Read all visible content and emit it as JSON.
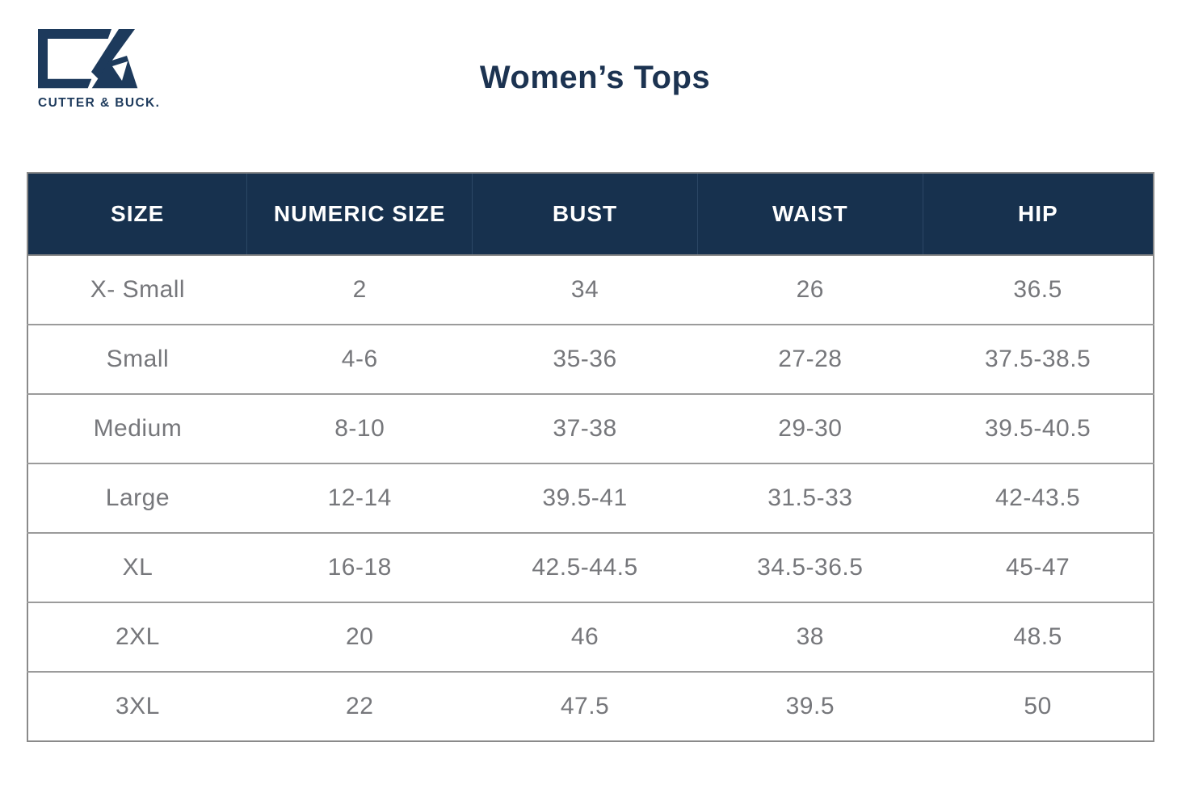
{
  "brand": {
    "wordmark": "CUTTER & BUCK.",
    "logo_icon": "cutter-buck-cb-monogram",
    "logo_color": "#1d3a5c"
  },
  "page": {
    "title": "Women’s Tops"
  },
  "colors": {
    "title_text": "#1c3351",
    "header_bg": "#17314e",
    "header_text": "#ffffff",
    "header_divider": "#2b4765",
    "body_text": "#76777b",
    "row_border": "#9b9b9b",
    "table_border": "#8a8a8a"
  },
  "size_chart": {
    "columns": [
      "SIZE",
      "NUMERIC SIZE",
      "BUST",
      "WAIST",
      "HIP"
    ],
    "column_keys": [
      "size",
      "numeric_size",
      "bust",
      "waist",
      "hip"
    ],
    "rows": [
      {
        "size": "X- Small",
        "numeric_size": "2",
        "bust": "34",
        "waist": "26",
        "hip": "36.5"
      },
      {
        "size": "Small",
        "numeric_size": "4-6",
        "bust": "35-36",
        "waist": "27-28",
        "hip": "37.5-38.5"
      },
      {
        "size": "Medium",
        "numeric_size": "8-10",
        "bust": "37-38",
        "waist": "29-30",
        "hip": "39.5-40.5"
      },
      {
        "size": "Large",
        "numeric_size": "12-14",
        "bust": "39.5-41",
        "waist": "31.5-33",
        "hip": "42-43.5"
      },
      {
        "size": "XL",
        "numeric_size": "16-18",
        "bust": "42.5-44.5",
        "waist": "34.5-36.5",
        "hip": "45-47"
      },
      {
        "size": "2XL",
        "numeric_size": "20",
        "bust": "46",
        "waist": "38",
        "hip": "48.5"
      },
      {
        "size": "3XL",
        "numeric_size": "22",
        "bust": "47.5",
        "waist": "39.5",
        "hip": "50"
      }
    ]
  }
}
